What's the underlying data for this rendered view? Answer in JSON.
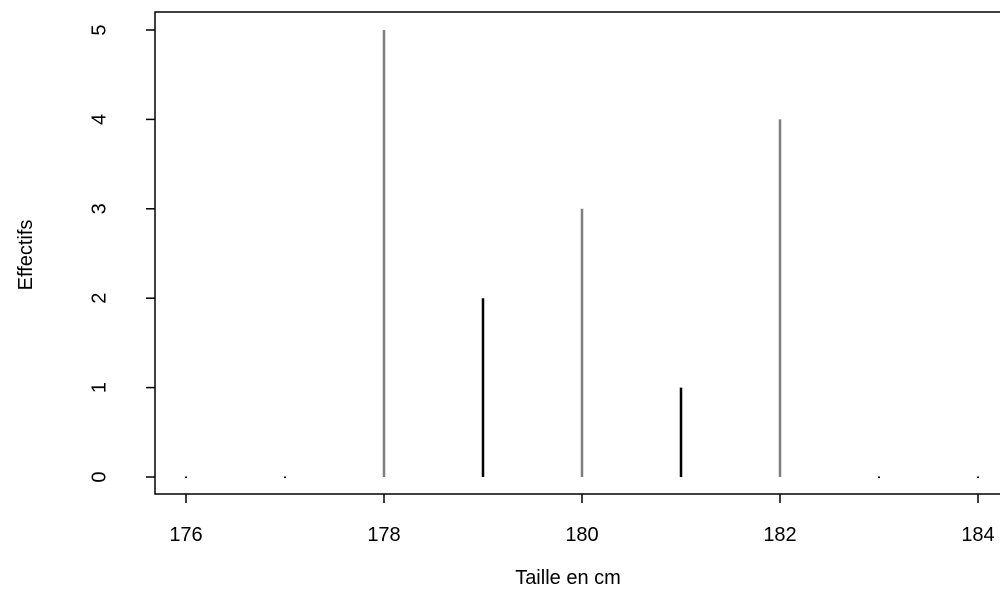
{
  "chart_data": {
    "type": "bar",
    "xlabel": "Taille en cm",
    "ylabel": "Effectifs",
    "x": [
      176,
      177,
      178,
      179,
      180,
      181,
      182,
      183,
      184
    ],
    "values": [
      0,
      0,
      5,
      2,
      3,
      1,
      4,
      0,
      0
    ],
    "xlim": [
      176,
      184
    ],
    "ylim": [
      0,
      5
    ],
    "x_ticks": [
      "176",
      "178",
      "180",
      "182",
      "184"
    ],
    "y_ticks": [
      "0",
      "1",
      "2",
      "3",
      "4",
      "5"
    ],
    "grid": false,
    "bar_colors": [
      "#000000",
      "#000000",
      "#7f7f7f",
      "#000000",
      "#7f7f7f",
      "#000000",
      "#7f7f7f",
      "#000000",
      "#000000"
    ]
  }
}
